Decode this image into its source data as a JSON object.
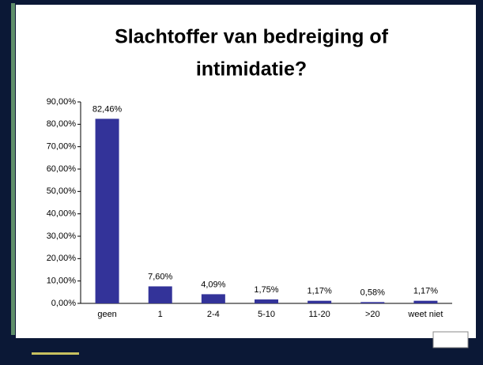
{
  "chart_data": {
    "type": "bar",
    "title_lines": [
      "Slachtoffer van bedreiging of",
      "intimidatie?"
    ],
    "categories": [
      "geen",
      "1",
      "2-4",
      "5-10",
      "11-20",
      ">20",
      "weet niet"
    ],
    "values": [
      82.46,
      7.6,
      4.09,
      1.75,
      1.17,
      0.58,
      1.17
    ],
    "value_labels": [
      "82,46%",
      "7,60%",
      "4,09%",
      "1,75%",
      "1,17%",
      "0,58%",
      "1,17%"
    ],
    "color": "#333399",
    "ylim": [
      0,
      90
    ],
    "yticks": [
      {
        "value": 0,
        "label": "0,00%"
      },
      {
        "value": 10,
        "label": "10,00%"
      },
      {
        "value": 20,
        "label": "20,00%"
      },
      {
        "value": 30,
        "label": "30,00%"
      },
      {
        "value": 40,
        "label": "40,00%"
      },
      {
        "value": 50,
        "label": "50,00%"
      },
      {
        "value": 60,
        "label": "60,00%"
      },
      {
        "value": 70,
        "label": "70,00%"
      },
      {
        "value": 80,
        "label": "80,00%"
      },
      {
        "value": 90,
        "label": "90,00%"
      }
    ]
  }
}
